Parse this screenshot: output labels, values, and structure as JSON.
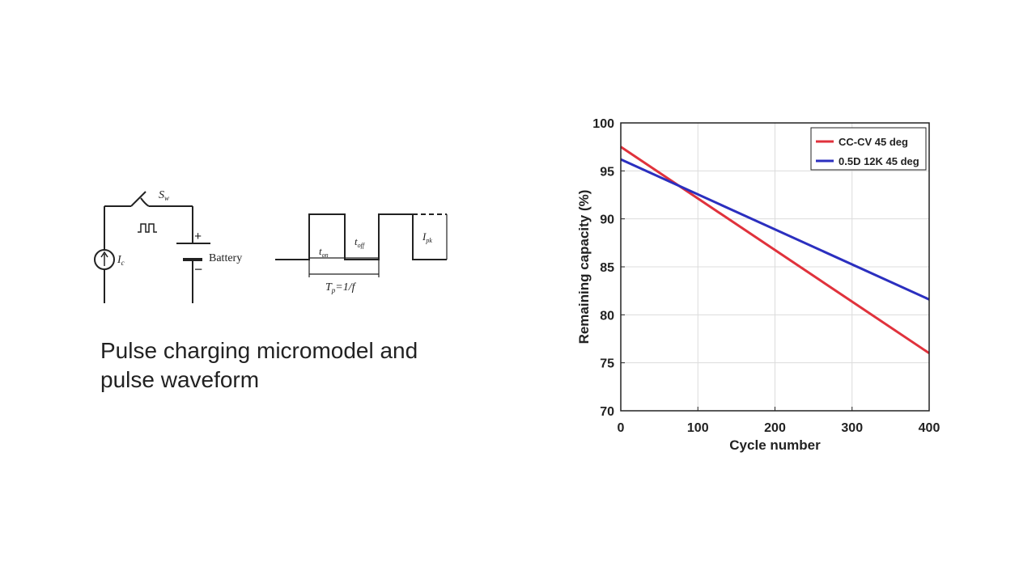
{
  "diagram": {
    "switch_label": "S",
    "switch_sub": "w",
    "source_label": "I",
    "source_sub": "c",
    "battery_label": "Battery",
    "plus": "+",
    "minus": "−",
    "t_on": "t",
    "t_on_sub": "on",
    "t_off": "t",
    "t_off_sub": "off",
    "i_pk": "I",
    "i_pk_sub": "pk",
    "period": "T",
    "period_sub": "p",
    "period_rest": "=1/f"
  },
  "caption": {
    "line1": "Pulse charging micromodel and",
    "line2": "pulse waveform"
  },
  "chart_data": {
    "type": "line",
    "title": "",
    "xlabel": "Cycle number",
    "ylabel": "Remaining capacity (%)",
    "xlim": [
      0,
      400
    ],
    "ylim": [
      70,
      100
    ],
    "xticks": [
      0,
      100,
      200,
      300,
      400
    ],
    "yticks": [
      70,
      75,
      80,
      85,
      90,
      95,
      100
    ],
    "grid": true,
    "legend_position": "top-right",
    "series": [
      {
        "name": "CC-CV 45 deg",
        "color": "#e0323c",
        "x": [
          0,
          400
        ],
        "y": [
          97.5,
          76.0
        ]
      },
      {
        "name": "0.5D 12K 45 deg",
        "color": "#2b2fbf",
        "x": [
          0,
          400
        ],
        "y": [
          96.2,
          81.6
        ]
      }
    ]
  }
}
